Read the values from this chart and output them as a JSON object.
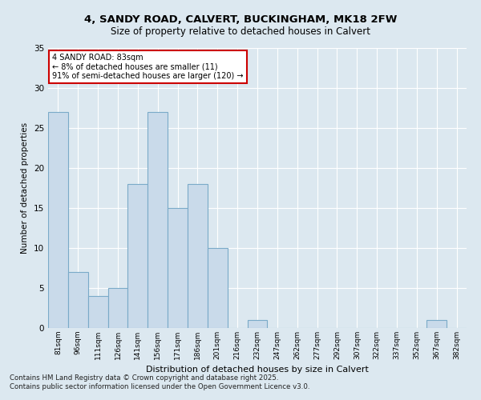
{
  "title_line1": "4, SANDY ROAD, CALVERT, BUCKINGHAM, MK18 2FW",
  "title_line2": "Size of property relative to detached houses in Calvert",
  "xlabel": "Distribution of detached houses by size in Calvert",
  "ylabel": "Number of detached properties",
  "bins": [
    "81sqm",
    "96sqm",
    "111sqm",
    "126sqm",
    "141sqm",
    "156sqm",
    "171sqm",
    "186sqm",
    "201sqm",
    "216sqm",
    "232sqm",
    "247sqm",
    "262sqm",
    "277sqm",
    "292sqm",
    "307sqm",
    "322sqm",
    "337sqm",
    "352sqm",
    "367sqm",
    "382sqm"
  ],
  "values": [
    27,
    7,
    4,
    5,
    18,
    27,
    15,
    18,
    10,
    0,
    1,
    0,
    0,
    0,
    0,
    0,
    0,
    0,
    0,
    1,
    0
  ],
  "bar_color": "#c9daea",
  "bar_edge_color": "#7aaac8",
  "annotation_text": "4 SANDY ROAD: 83sqm\n← 8% of detached houses are smaller (11)\n91% of semi-detached houses are larger (120) →",
  "annotation_box_color": "#ffffff",
  "annotation_box_edge": "#cc0000",
  "ylim": [
    0,
    35
  ],
  "yticks": [
    0,
    5,
    10,
    15,
    20,
    25,
    30,
    35
  ],
  "bg_color": "#dce8f0",
  "plot_bg_color": "#dce8f0",
  "grid_color": "#ffffff",
  "footer_line1": "Contains HM Land Registry data © Crown copyright and database right 2025.",
  "footer_line2": "Contains public sector information licensed under the Open Government Licence v3.0."
}
